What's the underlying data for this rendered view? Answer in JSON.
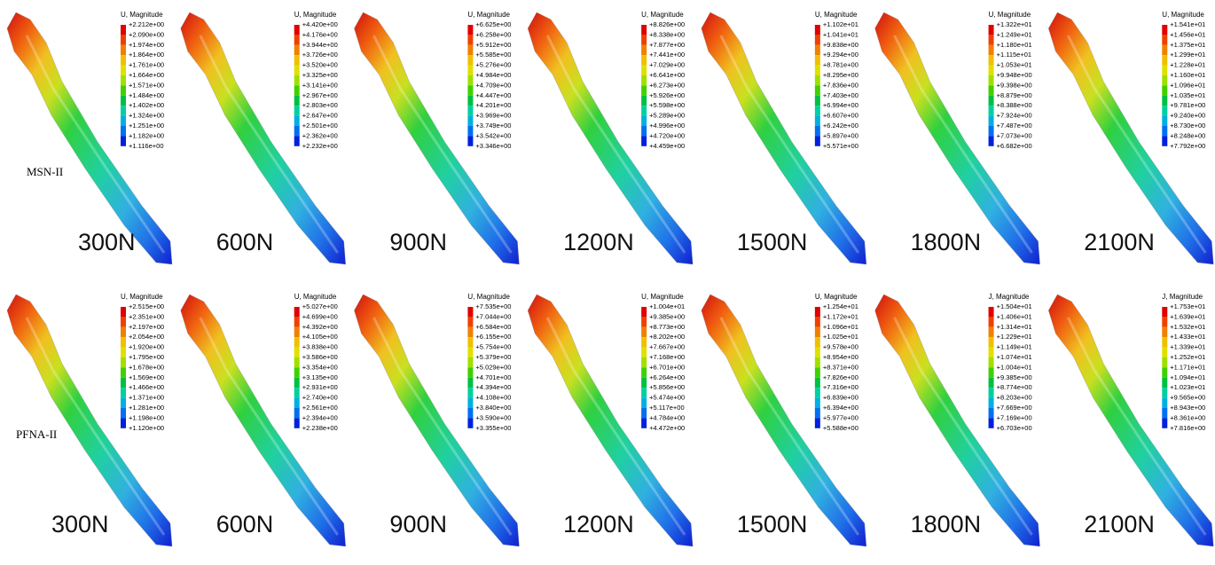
{
  "rows": [
    {
      "label": "MSN-II",
      "panels": [
        {
          "load": "300N",
          "legend_title": "U, Magnitude",
          "legend_values": [
            "+2.212e+00",
            "+2.090e+00",
            "+1.974e+00",
            "+1.864e+00",
            "+1.761e+00",
            "+1.664e+00",
            "+1.571e+00",
            "+1.484e+00",
            "+1.402e+00",
            "+1.324e+00",
            "+1.251e+00",
            "+1.182e+00",
            "+1.116e+00"
          ]
        },
        {
          "load": "600N",
          "legend_title": "U, Magnitude",
          "legend_values": [
            "+4.420e+00",
            "+4.176e+00",
            "+3.944e+00",
            "+3.726e+00",
            "+3.520e+00",
            "+3.325e+00",
            "+3.141e+00",
            "+2.967e+00",
            "+2.803e+00",
            "+2.647e+00",
            "+2.501e+00",
            "+2.362e+00",
            "+2.232e+00"
          ]
        },
        {
          "load": "900N",
          "legend_title": "U, Magnitude",
          "legend_values": [
            "+6.625e+00",
            "+6.258e+00",
            "+5.912e+00",
            "+5.585e+00",
            "+5.276e+00",
            "+4.984e+00",
            "+4.709e+00",
            "+4.447e+00",
            "+4.201e+00",
            "+3.969e+00",
            "+3.749e+00",
            "+3.542e+00",
            "+3.346e+00"
          ]
        },
        {
          "load": "1200N",
          "legend_title": "U, Magnitude",
          "legend_values": [
            "+8.826e+00",
            "+8.338e+00",
            "+7.877e+00",
            "+7.441e+00",
            "+7.029e+00",
            "+6.641e+00",
            "+6.273e+00",
            "+5.926e+00",
            "+5.598e+00",
            "+5.289e+00",
            "+4.996e+00",
            "+4.720e+00",
            "+4.459e+00"
          ]
        },
        {
          "load": "1500N",
          "legend_title": "U, Magnitude",
          "legend_values": [
            "+1.102e+01",
            "+1.041e+01",
            "+9.838e+00",
            "+9.294e+00",
            "+8.781e+00",
            "+8.295e+00",
            "+7.836e+00",
            "+7.403e+00",
            "+6.994e+00",
            "+6.607e+00",
            "+6.242e+00",
            "+5.897e+00",
            "+5.571e+00"
          ]
        },
        {
          "load": "1800N",
          "legend_title": "U, Magnitude",
          "legend_values": [
            "+1.322e+01",
            "+1.249e+01",
            "+1.180e+01",
            "+1.115e+01",
            "+1.053e+01",
            "+9.948e+00",
            "+9.398e+00",
            "+8.879e+00",
            "+8.388e+00",
            "+7.924e+00",
            "+7.487e+00",
            "+7.073e+00",
            "+6.682e+00"
          ]
        },
        {
          "load": "2100N",
          "legend_title": "U, Magnitude",
          "legend_values": [
            "+1.541e+01",
            "+1.456e+01",
            "+1.375e+01",
            "+1.299e+01",
            "+1.228e+01",
            "+1.160e+01",
            "+1.096e+01",
            "+1.035e+01",
            "+9.781e+00",
            "+9.240e+00",
            "+8.730e+00",
            "+8.248e+00",
            "+7.792e+00"
          ]
        }
      ]
    },
    {
      "label": "PFNA-II",
      "panels": [
        {
          "load": "300N",
          "legend_title": "U, Magnitude",
          "legend_values": [
            "+2.515e+00",
            "+2.351e+00",
            "+2.197e+00",
            "+2.054e+00",
            "+1.920e+00",
            "+1.795e+00",
            "+1.678e+00",
            "+1.569e+00",
            "+1.466e+00",
            "+1.371e+00",
            "+1.281e+00",
            "+1.198e+00",
            "+1.120e+00"
          ]
        },
        {
          "load": "600N",
          "legend_title": "U, Magnitude",
          "legend_values": [
            "+5.027e+00",
            "+4.699e+00",
            "+4.392e+00",
            "+4.105e+00",
            "+3.838e+00",
            "+3.586e+00",
            "+3.354e+00",
            "+3.135e+00",
            "+2.931e+00",
            "+2.740e+00",
            "+2.561e+00",
            "+2.394e+00",
            "+2.238e+00"
          ]
        },
        {
          "load": "900N",
          "legend_title": "U, Magnitude",
          "legend_values": [
            "+7.535e+00",
            "+7.044e+00",
            "+6.584e+00",
            "+6.155e+00",
            "+5.754e+00",
            "+5.379e+00",
            "+5.029e+00",
            "+4.701e+00",
            "+4.394e+00",
            "+4.108e+00",
            "+3.840e+00",
            "+3.590e+00",
            "+3.355e+00"
          ]
        },
        {
          "load": "1200N",
          "legend_title": "U, Magnitude",
          "legend_values": [
            "+1.004e+01",
            "+9.385e+00",
            "+8.773e+00",
            "+8.202e+00",
            "+7.667e+00",
            "+7.168e+00",
            "+6.701e+00",
            "+6.264e+00",
            "+5.856e+00",
            "+5.474e+00",
            "+5.117e+00",
            "+4.784e+00",
            "+4.472e+00"
          ]
        },
        {
          "load": "1500N",
          "legend_title": "U, Magnitude",
          "legend_values": [
            "+1.254e+01",
            "+1.172e+01",
            "+1.096e+01",
            "+1.025e+01",
            "+9.578e+00",
            "+8.954e+00",
            "+8.371e+00",
            "+7.826e+00",
            "+7.316e+00",
            "+6.839e+00",
            "+6.394e+00",
            "+5.977e+00",
            "+5.588e+00"
          ]
        },
        {
          "load": "1800N",
          "legend_title": "J, Magnitude",
          "legend_values": [
            "+1.504e+01",
            "+1.406e+01",
            "+1.314e+01",
            "+1.229e+01",
            "+1.149e+01",
            "+1.074e+01",
            "+1.004e+01",
            "+9.385e+00",
            "+8.774e+00",
            "+8.203e+00",
            "+7.669e+00",
            "+7.169e+00",
            "+6.703e+00"
          ]
        },
        {
          "load": "2100N",
          "legend_title": "J, Magnitude",
          "legend_values": [
            "+1.753e+01",
            "+1.639e+01",
            "+1.532e+01",
            "+1.433e+01",
            "+1.339e+01",
            "+1.252e+01",
            "+1.171e+01",
            "+1.094e+01",
            "+1.023e+01",
            "+9.565e+00",
            "+8.943e+00",
            "+8.361e+00",
            "+7.816e+00"
          ]
        }
      ]
    }
  ]
}
